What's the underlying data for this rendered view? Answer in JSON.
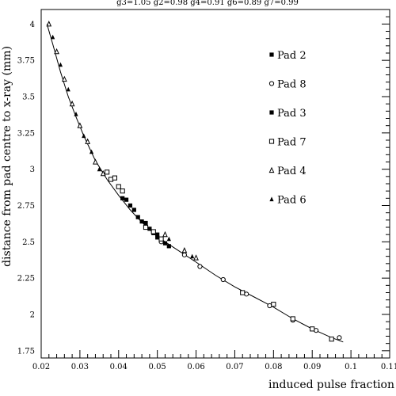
{
  "chart_data": {
    "type": "scatter",
    "title": "g3=1.05 g2=0.98 g4=0.91 g6=0.89 g7=0.99",
    "xlabel": "induced pulse fraction",
    "ylabel": "distance from pad centre to x-ray (mm)",
    "xlim": [
      0.02,
      0.11
    ],
    "ylim": [
      1.7,
      4.1
    ],
    "x_ticks": [
      "0.02",
      "0.03",
      "0.04",
      "0.05",
      "0.06",
      "0.07",
      "0.08",
      "0.09",
      "0.1",
      "0.11"
    ],
    "y_ticks": [
      "1.75",
      "2",
      "2.25",
      "2.5",
      "2.75",
      "3",
      "3.25",
      "3.5",
      "3.75",
      "4"
    ],
    "x_tick_values": [
      0.02,
      0.03,
      0.04,
      0.05,
      0.06,
      0.07,
      0.08,
      0.09,
      0.1,
      0.11
    ],
    "y_tick_values": [
      1.75,
      2,
      2.25,
      2.5,
      2.75,
      3,
      3.25,
      3.5,
      3.75,
      4
    ],
    "grid": false,
    "legend_position": "top-right",
    "fit_curve": [
      [
        0.0215,
        4.0
      ],
      [
        0.023,
        3.86
      ],
      [
        0.025,
        3.67
      ],
      [
        0.027,
        3.5
      ],
      [
        0.029,
        3.36
      ],
      [
        0.031,
        3.23
      ],
      [
        0.034,
        3.06
      ],
      [
        0.037,
        2.93
      ],
      [
        0.04,
        2.82
      ],
      [
        0.043,
        2.72
      ],
      [
        0.046,
        2.635
      ],
      [
        0.049,
        2.56
      ],
      [
        0.052,
        2.5
      ],
      [
        0.056,
        2.43
      ],
      [
        0.06,
        2.36
      ],
      [
        0.065,
        2.27
      ],
      [
        0.07,
        2.19
      ],
      [
        0.075,
        2.12
      ],
      [
        0.08,
        2.05
      ],
      [
        0.085,
        1.97
      ],
      [
        0.09,
        1.9
      ],
      [
        0.095,
        1.84
      ],
      [
        0.098,
        1.81
      ]
    ],
    "series": [
      {
        "name": "Pad 2",
        "marker": "filled-square",
        "points": [
          [
            0.038,
            2.93
          ],
          [
            0.04,
            2.88
          ],
          [
            0.042,
            2.79
          ],
          [
            0.043,
            2.75
          ],
          [
            0.045,
            2.67
          ],
          [
            0.046,
            2.64
          ],
          [
            0.048,
            2.59
          ],
          [
            0.049,
            2.56
          ],
          [
            0.05,
            2.53
          ],
          [
            0.051,
            2.51
          ],
          [
            0.053,
            2.47
          ]
        ]
      },
      {
        "name": "Pad 8",
        "marker": "open-circle",
        "points": [
          [
            0.051,
            2.5
          ],
          [
            0.057,
            2.41
          ],
          [
            0.061,
            2.33
          ],
          [
            0.067,
            2.24
          ],
          [
            0.073,
            2.14
          ],
          [
            0.079,
            2.06
          ],
          [
            0.085,
            1.96
          ],
          [
            0.091,
            1.89
          ],
          [
            0.097,
            1.84
          ]
        ]
      },
      {
        "name": "Pad 3",
        "marker": "filled-square",
        "points": [
          [
            0.041,
            2.8
          ],
          [
            0.044,
            2.72
          ],
          [
            0.047,
            2.63
          ],
          [
            0.05,
            2.55
          ],
          [
            0.052,
            2.49
          ]
        ]
      },
      {
        "name": "Pad 7",
        "marker": "open-square",
        "points": [
          [
            0.037,
            2.98
          ],
          [
            0.038,
            2.93
          ],
          [
            0.039,
            2.94
          ],
          [
            0.04,
            2.88
          ],
          [
            0.041,
            2.85
          ],
          [
            0.047,
            2.6
          ],
          [
            0.049,
            2.57
          ],
          [
            0.051,
            2.52
          ],
          [
            0.072,
            2.15
          ],
          [
            0.08,
            2.07
          ],
          [
            0.085,
            1.97
          ],
          [
            0.09,
            1.9
          ],
          [
            0.095,
            1.83
          ]
        ]
      },
      {
        "name": "Pad 4",
        "marker": "open-triangle",
        "points": [
          [
            0.022,
            4.0
          ],
          [
            0.024,
            3.81
          ],
          [
            0.026,
            3.62
          ],
          [
            0.028,
            3.45
          ],
          [
            0.03,
            3.3
          ],
          [
            0.032,
            3.19
          ],
          [
            0.034,
            3.05
          ],
          [
            0.036,
            2.97
          ],
          [
            0.052,
            2.55
          ],
          [
            0.057,
            2.44
          ],
          [
            0.06,
            2.39
          ]
        ]
      },
      {
        "name": "Pad 6",
        "marker": "filled-triangle",
        "points": [
          [
            0.023,
            3.91
          ],
          [
            0.025,
            3.72
          ],
          [
            0.027,
            3.55
          ],
          [
            0.029,
            3.38
          ],
          [
            0.031,
            3.23
          ],
          [
            0.033,
            3.12
          ],
          [
            0.035,
            3.0
          ],
          [
            0.053,
            2.52
          ],
          [
            0.059,
            2.4
          ]
        ]
      }
    ]
  }
}
